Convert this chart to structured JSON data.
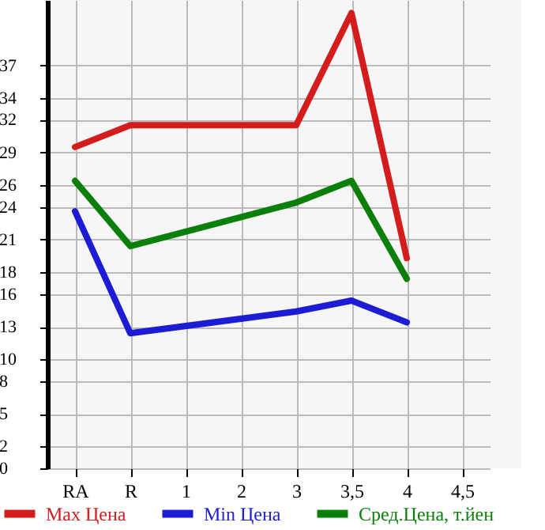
{
  "chart_data": {
    "type": "line",
    "categories": [
      "RA",
      "R",
      "1",
      "2",
      "3",
      "3,5",
      "4",
      "4,5"
    ],
    "series": [
      {
        "name": "Max Цена",
        "color": "#d41c1c",
        "values": [
          29.5,
          31.5,
          null,
          null,
          31.5,
          41.8,
          19.3,
          null
        ]
      },
      {
        "name": "Min Цена",
        "color": "#1c1cd4",
        "values": [
          23.6,
          12.4,
          null,
          null,
          14.4,
          15.4,
          13.4,
          null
        ]
      },
      {
        "name": "Сред.Цена, т.йен",
        "color": "#0a800a",
        "values": [
          26.4,
          20.4,
          null,
          null,
          24.4,
          26.4,
          17.4,
          null
        ]
      }
    ],
    "ylim": [
      0,
      43
    ],
    "yticks": [
      0,
      2,
      5,
      8,
      10,
      13,
      16,
      18,
      21,
      24,
      26,
      29,
      32,
      34,
      37
    ],
    "grid": true,
    "legend": "bottom",
    "marker": "none",
    "line_style": "solid"
  }
}
